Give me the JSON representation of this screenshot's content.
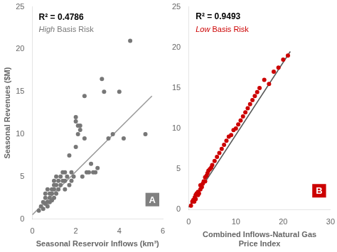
{
  "chart_data": [
    {
      "type": "scatter",
      "xlabel": "Seasonal Reservoir Inflows (km³)",
      "ylabel": "Seasonal Revenues ($M)",
      "annotations": [
        {
          "text": "R² = 0.4786"
        },
        {
          "text": "High Basis Risk",
          "color": "#777777"
        },
        {
          "text": "A",
          "color": "#808080"
        }
      ],
      "series": [
        {
          "type": "scatter",
          "color": "#777777",
          "x": [
            0.3,
            0.4,
            0.5,
            0.5,
            0.6,
            0.6,
            0.6,
            0.7,
            0.7,
            0.7,
            0.8,
            0.8,
            0.8,
            0.9,
            0.9,
            0.9,
            1.0,
            1.0,
            1.0,
            1.0,
            1.1,
            1.1,
            1.1,
            1.2,
            1.2,
            1.3,
            1.3,
            1.4,
            1.4,
            1.5,
            1.5,
            1.5,
            1.6,
            1.7,
            1.7,
            1.8,
            1.8,
            1.9,
            2.0,
            2.0,
            2.0,
            2.1,
            2.1,
            2.2,
            2.2,
            2.3,
            2.4,
            2.4,
            2.5,
            2.6,
            2.7,
            2.8,
            2.9,
            3.0,
            3.2,
            3.3,
            3.5,
            3.7,
            4.0,
            4.2,
            4.5,
            5.2
          ],
          "values": [
            1.0,
            1.5,
            1.2,
            2.0,
            1.8,
            2.5,
            3.0,
            1.5,
            2.0,
            3.5,
            2.0,
            2.5,
            3.0,
            2.2,
            3.0,
            3.5,
            2.5,
            3.5,
            4.0,
            4.5,
            3.0,
            4.0,
            5.0,
            3.5,
            4.5,
            4.0,
            5.0,
            4.5,
            5.5,
            3.5,
            4.5,
            5.5,
            5.0,
            4.0,
            7.5,
            4.5,
            5.5,
            5.0,
            8.5,
            11.5,
            12.0,
            10.0,
            11.0,
            10.5,
            11.0,
            5.0,
            9.5,
            14.5,
            5.5,
            5.5,
            6.5,
            5.5,
            5.5,
            6.0,
            16.5,
            15.0,
            9.5,
            10.0,
            15.0,
            9.5,
            21.0,
            10.0
          ]
        },
        {
          "type": "line",
          "color": "#999999",
          "x": [
            0,
            5.5
          ],
          "values": [
            0.5,
            14.5
          ]
        }
      ],
      "xlim": [
        0,
        6
      ],
      "ylim": [
        0,
        25
      ],
      "xticks": [
        0,
        2,
        4,
        6
      ],
      "yticks": [
        0,
        5,
        10,
        15,
        20,
        25
      ],
      "grid": false
    },
    {
      "type": "scatter",
      "xlabel": "Combined Inflows-Natural Gas\nPrice Index",
      "annotations": [
        {
          "text": "R² = 0.9493"
        },
        {
          "text": "Low Basis Risk",
          "color": "#cc0000"
        },
        {
          "text": "B",
          "color": "#cc0000"
        }
      ],
      "series": [
        {
          "type": "scatter",
          "color": "#cc0000",
          "x": [
            0.5,
            0.8,
            1.0,
            1.2,
            1.3,
            1.5,
            1.5,
            1.7,
            2.0,
            2.0,
            2.2,
            2.5,
            2.5,
            2.8,
            3.0,
            3.2,
            3.5,
            3.5,
            3.8,
            4.0,
            4.2,
            4.5,
            4.8,
            5.0,
            5.5,
            6.0,
            6.5,
            7.0,
            7.5,
            8.0,
            8.5,
            9.0,
            9.5,
            10.0,
            10.5,
            11.0,
            11.5,
            12.0,
            12.5,
            13.0,
            13.5,
            14.0,
            14.5,
            15.0,
            16.0,
            17.0,
            18.0,
            19.0,
            20.0,
            21.0
          ],
          "values": [
            0.5,
            1.0,
            1.2,
            1.0,
            1.5,
            1.3,
            1.8,
            2.0,
            1.8,
            2.2,
            2.0,
            2.5,
            3.0,
            2.8,
            3.2,
            3.5,
            3.5,
            4.0,
            4.2,
            4.5,
            4.8,
            5.0,
            5.2,
            5.5,
            6.0,
            6.5,
            7.0,
            7.5,
            8.0,
            8.5,
            9.0,
            9.2,
            9.8,
            10.0,
            10.5,
            11.0,
            11.5,
            12.0,
            12.5,
            13.0,
            13.5,
            14.0,
            14.5,
            15.0,
            16.0,
            15.5,
            17.0,
            17.5,
            18.5,
            19.0
          ]
        },
        {
          "type": "line",
          "color": "#555555",
          "x": [
            0,
            21.5
          ],
          "values": [
            0.3,
            19.5
          ]
        }
      ],
      "xlim": [
        0,
        30
      ],
      "ylim": [
        0,
        25
      ],
      "xticks": [
        0,
        10,
        20,
        30
      ],
      "yticks": [
        0,
        5,
        10,
        15,
        20,
        25
      ],
      "grid": false
    }
  ]
}
